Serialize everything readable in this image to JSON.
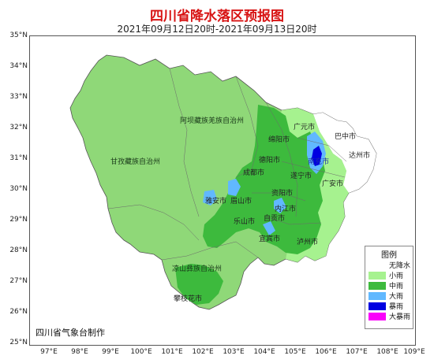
{
  "title": "四川省降水落区预报图",
  "subtitle": "2021年09月12日20时-2021年09月13日20时",
  "lat_labels": [
    "35°N",
    "34°N",
    "33°N",
    "32°N",
    "31°N",
    "30°N",
    "29°N",
    "28°N",
    "27°N",
    "26°N",
    "25°N"
  ],
  "lon_labels": [
    "97°E",
    "98°E",
    "99°E",
    "100°E",
    "101°E",
    "102°E",
    "103°E",
    "104°E",
    "105°E",
    "106°E",
    "107°E",
    "108°E",
    "109°E"
  ],
  "regions": [
    "阿坝藏族羌族自治州",
    "甘孜藏族自治州",
    "凉山彝族自治州"
  ],
  "cities": {
    "guangyuan": "广元市",
    "bazhong": "巴中市",
    "mianyang": "绵阳市",
    "deyang": "德阳市",
    "chengdu": "成都市",
    "nanchong": "南充市",
    "suining": "遂宁市",
    "dazhou": "达州市",
    "guangan": "广安市",
    "yaan": "雅安市",
    "meishan": "眉山市",
    "ziyang": "资阳市",
    "neijiang": "内江市",
    "zigong": "自贡市",
    "leshan": "乐山市",
    "yibin": "宜宾市",
    "luzhou": "泸州市",
    "panzhihua": "攀枝花市"
  },
  "legend": {
    "title": "图例",
    "items": [
      {
        "label": "无降水",
        "color": "#ffffff"
      },
      {
        "label": "小雨",
        "color": "#a6f28f"
      },
      {
        "label": "中雨",
        "color": "#3dba3d"
      },
      {
        "label": "大雨",
        "color": "#61b8ff"
      },
      {
        "label": "暴雨",
        "color": "#0000e1"
      },
      {
        "label": "大暴雨",
        "color": "#fa00fa"
      }
    ]
  },
  "maker": "四川省气象台制作",
  "colors": {
    "no_rain": "#ffffff",
    "light_rain": "#a6f28f",
    "map_light": "#8fd878",
    "moderate_rain": "#3dba3d",
    "heavy_rain": "#61b8ff",
    "rainstorm": "#0000e1",
    "title_red": "#d81414"
  }
}
